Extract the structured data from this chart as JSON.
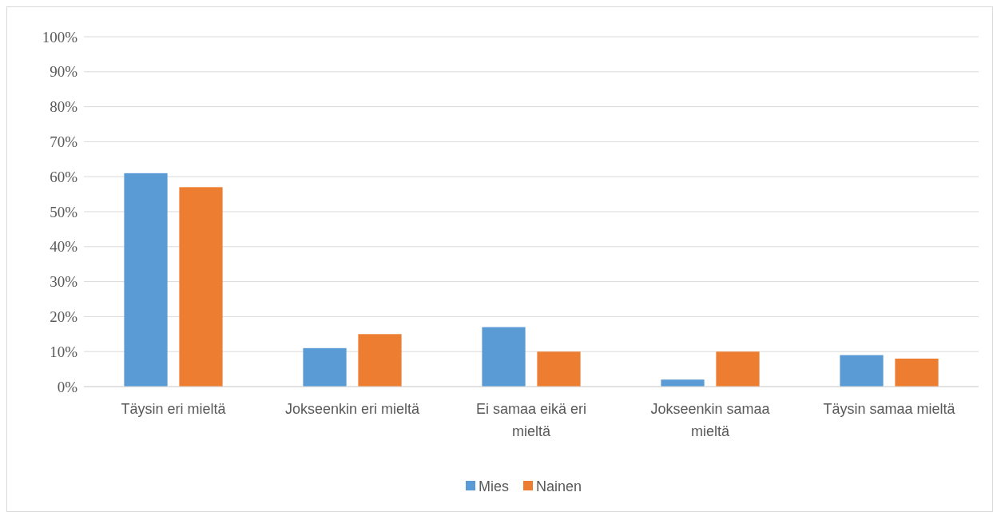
{
  "chart_data": {
    "type": "bar",
    "categories": [
      "Täysin eri mieltä",
      "Jokseenkin eri mieltä",
      "Ei samaa eikä eri mieltä",
      "Jokseenkin samaa mieltä",
      "Täysin samaa mieltä"
    ],
    "series": [
      {
        "name": "Mies",
        "color": "#5b9bd5",
        "values": [
          61,
          11,
          17,
          2,
          9
        ]
      },
      {
        "name": "Nainen",
        "color": "#ed7d31",
        "values": [
          57,
          15,
          10,
          10,
          8
        ]
      }
    ],
    "ylim": [
      0,
      100
    ],
    "yticks": [
      {
        "value": 0,
        "label": "0%"
      },
      {
        "value": 10,
        "label": "10%"
      },
      {
        "value": 20,
        "label": "20%"
      },
      {
        "value": 30,
        "label": "30%"
      },
      {
        "value": 40,
        "label": "40%"
      },
      {
        "value": 50,
        "label": "50%"
      },
      {
        "value": 60,
        "label": "60%"
      },
      {
        "value": 70,
        "label": "70%"
      },
      {
        "value": 80,
        "label": "80%"
      },
      {
        "value": 90,
        "label": "90%"
      },
      {
        "value": 100,
        "label": "100%"
      }
    ],
    "grid": "y",
    "legend": "bottom"
  }
}
